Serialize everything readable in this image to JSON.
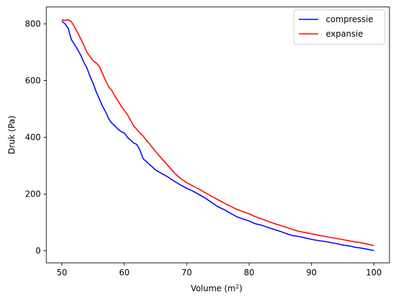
{
  "chart_data": {
    "type": "line",
    "xlabel": "Volume (m",
    "xlabel_sup": "2",
    "xlabel_end": ")",
    "ylabel": "Druk (Pa)",
    "xlim": [
      47.5,
      102.5
    ],
    "ylim": [
      -43,
      860
    ],
    "xticks": [
      50,
      60,
      70,
      80,
      90,
      100
    ],
    "yticks": [
      0,
      200,
      400,
      600,
      800
    ],
    "grid": false,
    "legend_position": "top-right",
    "series": [
      {
        "name": "compressie",
        "color": "#0000ff",
        "x": [
          50,
          50.5,
          51,
          51.5,
          52,
          52.5,
          53,
          53.5,
          54,
          54.5,
          55,
          55.5,
          56,
          56.5,
          57,
          57.5,
          58,
          58.5,
          59,
          59.5,
          60,
          60.5,
          61,
          61.5,
          62,
          62.5,
          63,
          63.5,
          64,
          65,
          66,
          67,
          68,
          69,
          70,
          71,
          72,
          73,
          74,
          75,
          76,
          77,
          78,
          79,
          80,
          81,
          82,
          83,
          84,
          85,
          86,
          87,
          88,
          89,
          90,
          91,
          92,
          93,
          94,
          95,
          96,
          97,
          98,
          99,
          100
        ],
        "values": [
          810,
          800,
          785,
          745,
          728,
          710,
          690,
          665,
          645,
          615,
          590,
          560,
          535,
          510,
          490,
          465,
          450,
          440,
          428,
          420,
          415,
          400,
          390,
          380,
          375,
          355,
          325,
          315,
          305,
          285,
          272,
          260,
          245,
          232,
          220,
          210,
          198,
          185,
          170,
          155,
          145,
          132,
          120,
          112,
          105,
          95,
          90,
          82,
          75,
          68,
          60,
          53,
          50,
          45,
          40,
          36,
          33,
          29,
          25,
          20,
          17,
          12,
          9,
          5,
          0
        ]
      },
      {
        "name": "expansie",
        "color": "#ff0000",
        "x": [
          50,
          50.5,
          51,
          51.5,
          52,
          52.5,
          53,
          53.5,
          54,
          54.5,
          55,
          55.5,
          56,
          56.5,
          57,
          57.5,
          58,
          58.5,
          59,
          59.5,
          60,
          60.5,
          61,
          61.5,
          62,
          62.5,
          63,
          63.5,
          64,
          65,
          66,
          67,
          68,
          69,
          70,
          71,
          72,
          73,
          74,
          75,
          76,
          77,
          78,
          79,
          80,
          81,
          82,
          83,
          84,
          85,
          86,
          87,
          88,
          89,
          90,
          91,
          92,
          93,
          94,
          95,
          96,
          97,
          98,
          99,
          100
        ],
        "values": [
          815,
          812,
          815,
          808,
          790,
          770,
          748,
          725,
          700,
          685,
          670,
          662,
          650,
          625,
          600,
          578,
          565,
          545,
          528,
          510,
          495,
          480,
          460,
          440,
          428,
          415,
          405,
          390,
          378,
          350,
          325,
          300,
          275,
          255,
          240,
          228,
          217,
          204,
          192,
          180,
          168,
          157,
          146,
          138,
          130,
          120,
          112,
          104,
          96,
          89,
          82,
          75,
          68,
          64,
          60,
          55,
          51,
          47,
          43,
          39,
          35,
          31,
          28,
          23,
          18
        ]
      }
    ]
  }
}
